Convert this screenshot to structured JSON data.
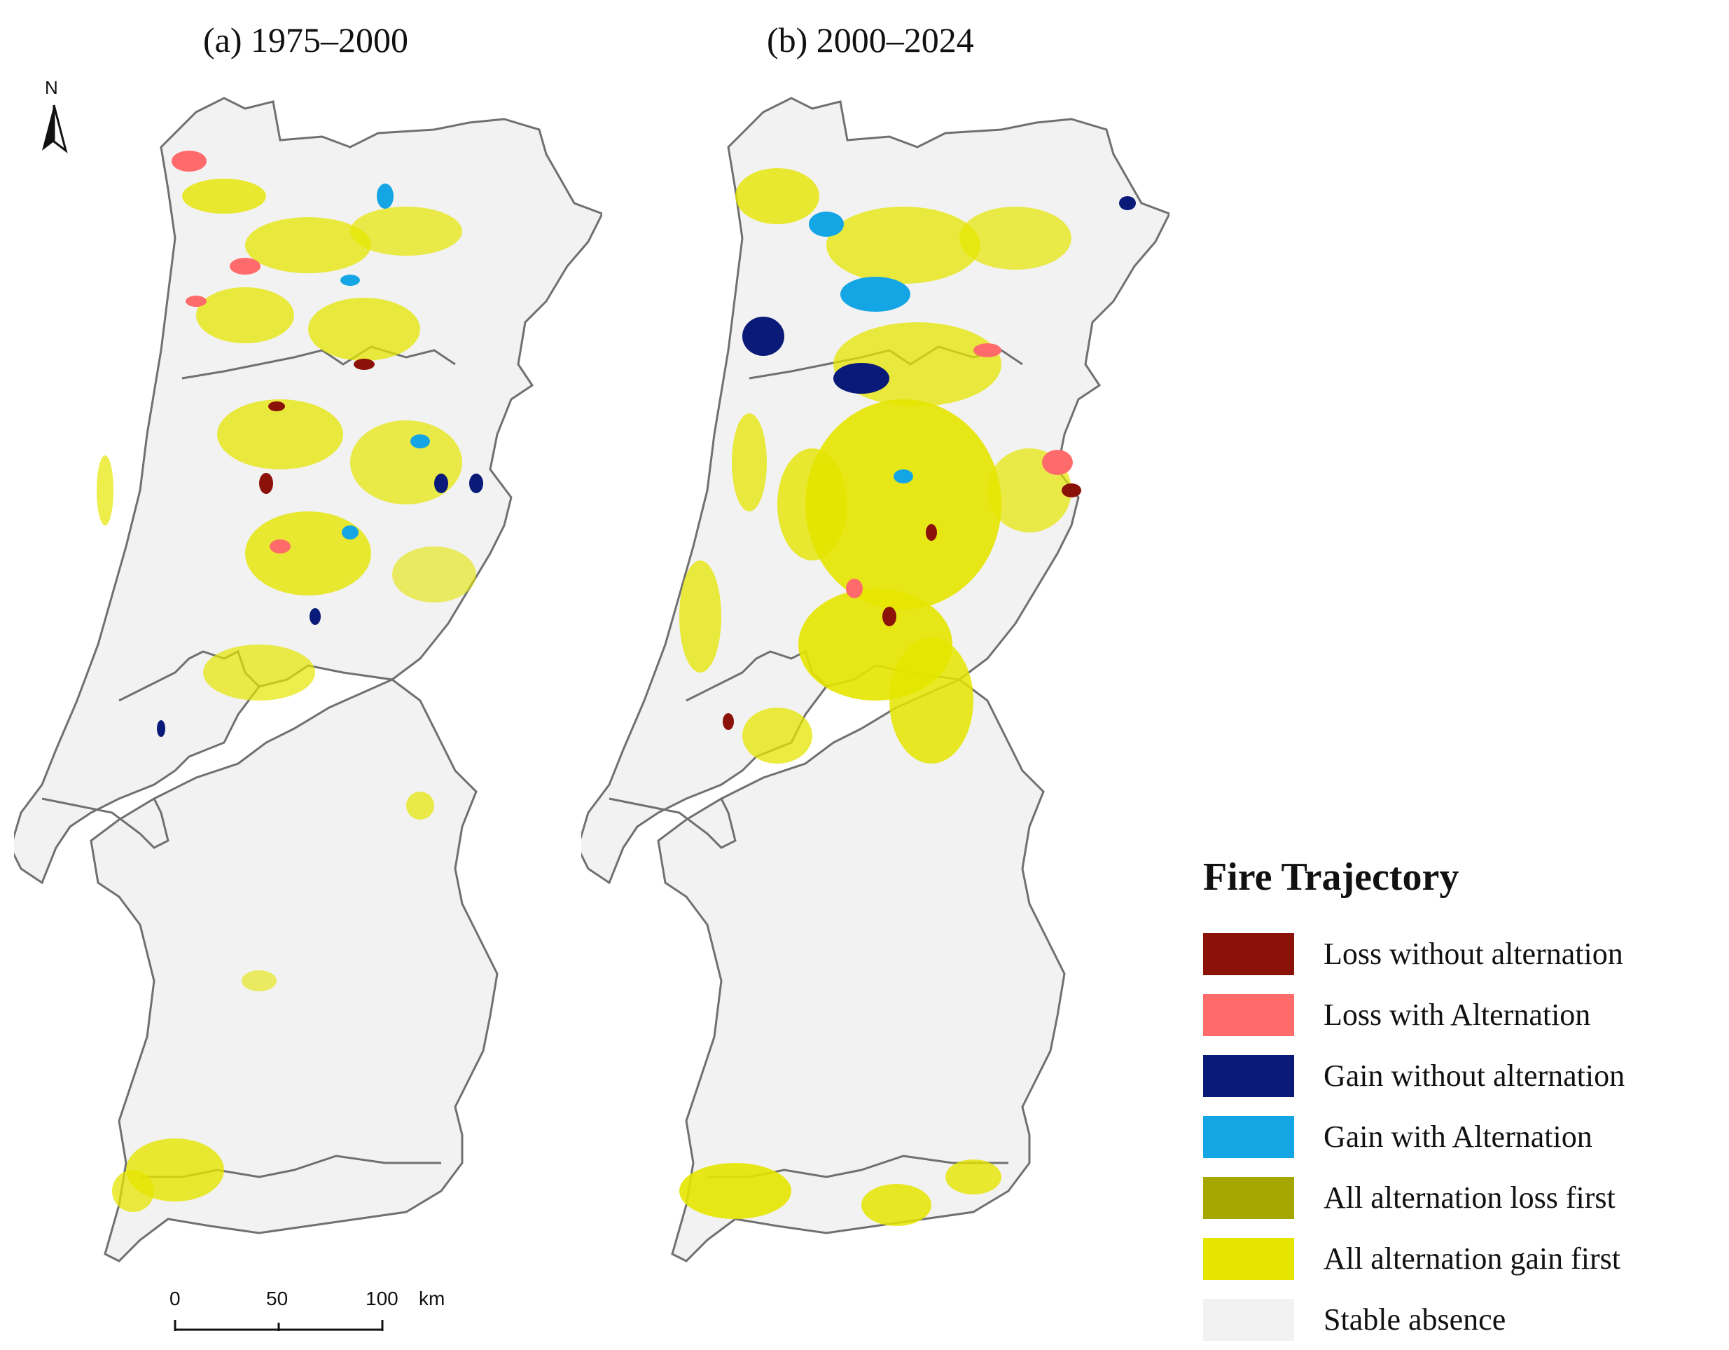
{
  "panels": {
    "a": {
      "title": "(a) 1975–2000"
    },
    "b": {
      "title": "(b) 2000–2024"
    }
  },
  "north_arrow": {
    "letter": "N"
  },
  "scale_bar": {
    "ticks": [
      "0",
      "50",
      "100"
    ],
    "unit": "km"
  },
  "legend": {
    "title": "Fire Trajectory",
    "items": [
      {
        "label": "Loss without alternation",
        "color": "#8b1208"
      },
      {
        "label": "Loss with Alternation",
        "color": "#ff6b6b"
      },
      {
        "label": "Gain without alternation",
        "color": "#0a1a78"
      },
      {
        "label": "Gain with Alternation",
        "color": "#14a6e4"
      },
      {
        "label": "All alternation loss first",
        "color": "#a6a600"
      },
      {
        "label": "All alternation gain first",
        "color": "#e5e500"
      },
      {
        "label": "Stable absence",
        "color": "#f2f2f2"
      }
    ]
  }
}
